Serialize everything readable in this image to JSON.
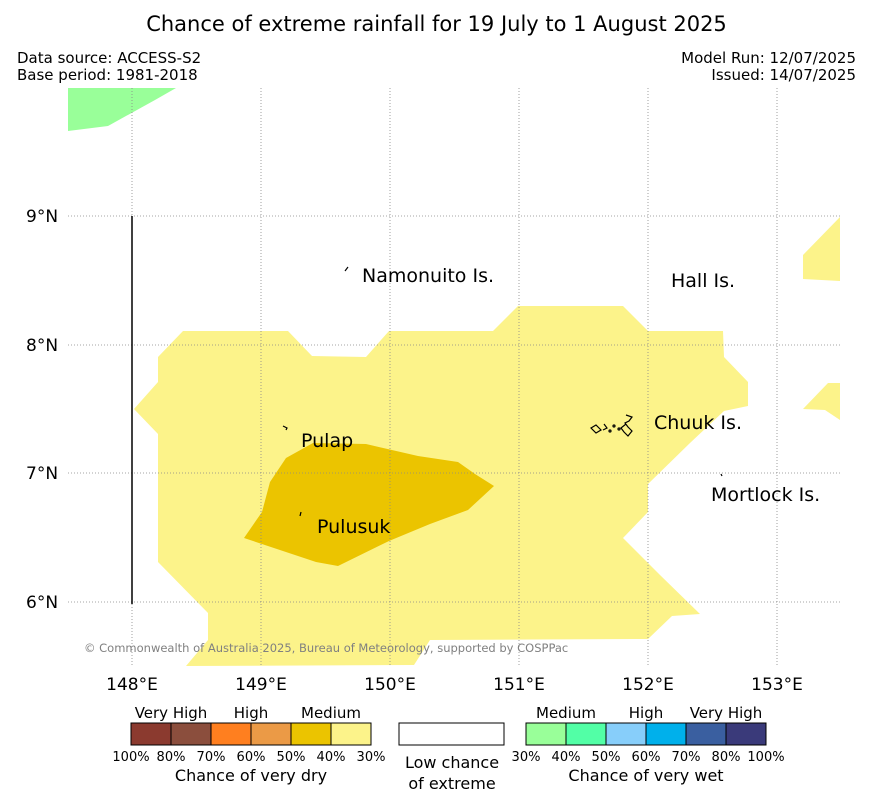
{
  "title": "Chance of extreme rainfall for 19 July to 1 August 2025",
  "meta": {
    "data_source": "Data source: ACCESS-S2",
    "base_period": "Base period: 1981-2018",
    "model_run": "Model Run: 12/07/2025",
    "issued": "Issued: 14/07/2025"
  },
  "map": {
    "lon_ticks": [
      "148°E",
      "149°E",
      "150°E",
      "151°E",
      "152°E",
      "153°E"
    ],
    "lat_ticks": [
      "9°N",
      "8°N",
      "7°N",
      "6°N"
    ],
    "places": [
      {
        "key": "namonuito",
        "label": "Namonuito Is."
      },
      {
        "key": "hall",
        "label": "Hall Is."
      },
      {
        "key": "chuuk",
        "label": "Chuuk Is."
      },
      {
        "key": "pulap",
        "label": "Pulap"
      },
      {
        "key": "pulusuk",
        "label": "Pulusuk"
      },
      {
        "key": "mortlock",
        "label": "Mortlock Is."
      }
    ],
    "copyright": "© Commonwealth of Australia 2025, Bureau of Meteorology, supported by COSPPac",
    "colors": {
      "dry_medium_30_40": "#fcf38a",
      "dry_medium_40_50": "#ebc400",
      "wet_medium_30_40": "#99ff99"
    }
  },
  "legend": {
    "dry": {
      "levels": [
        "Very High",
        "High",
        "Medium"
      ],
      "ticks": [
        "100%",
        "80%",
        "70%",
        "60%",
        "50%",
        "40%",
        "30%"
      ],
      "title": "Chance of very dry",
      "colors": [
        "#8b3a2f",
        "#8b4e3d",
        "#ff7f1f",
        "#eb9a46",
        "#ebc400",
        "#fcf38a"
      ]
    },
    "neutral": {
      "line1": "Low chance",
      "line2": "of extreme"
    },
    "wet": {
      "levels": [
        "Medium",
        "High",
        "Very High"
      ],
      "ticks": [
        "30%",
        "40%",
        "50%",
        "60%",
        "70%",
        "80%",
        "100%"
      ],
      "title": "Chance of very wet",
      "colors": [
        "#99ff99",
        "#52ffa6",
        "#87cefa",
        "#00b0eb",
        "#3a5fa0",
        "#3a3a7a"
      ]
    }
  }
}
